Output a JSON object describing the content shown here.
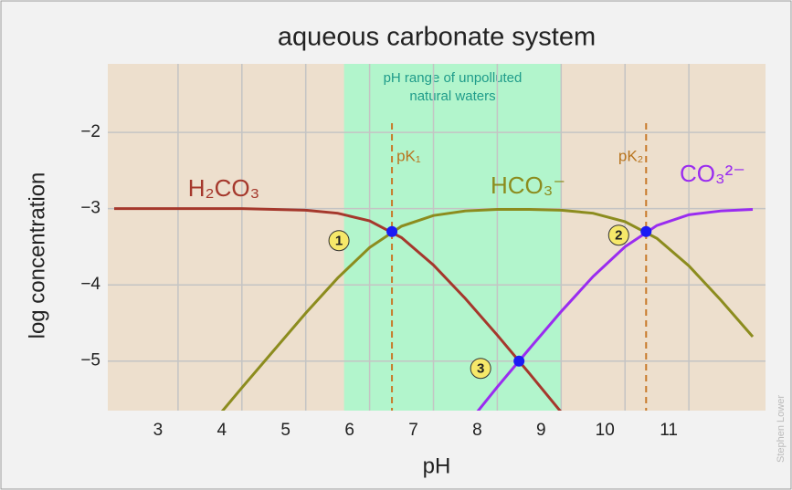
{
  "chart_data": {
    "type": "line",
    "title": "aqueous carbonate system",
    "x_label": "pH",
    "y_label": "log concentration",
    "credit": "Stephen Lower",
    "xlim": [
      1.9,
      12.2
    ],
    "ylim": [
      -5.65,
      -1.1
    ],
    "xticks": [
      3,
      4,
      5,
      6,
      7,
      8,
      9,
      10,
      11
    ],
    "yticks": [
      {
        "value": -2,
        "label": "−2"
      },
      {
        "value": -3,
        "label": "−3"
      },
      {
        "value": -4,
        "label": "−4"
      },
      {
        "value": -5,
        "label": "−5"
      }
    ],
    "grid": true,
    "x": [
      2,
      2.5,
      3,
      3.5,
      4,
      4.5,
      5,
      5.5,
      6,
      6.5,
      7,
      7.5,
      8,
      8.5,
      9,
      9.5,
      10,
      10.5,
      11,
      11.5,
      12
    ],
    "series": [
      {
        "name": "H₂CO₃",
        "color": "#a5382c",
        "values": [
          -3.0,
          -3.0,
          -3.0,
          -3.0,
          -3.0,
          -3.01,
          -3.02,
          -3.06,
          -3.16,
          -3.38,
          -3.74,
          -4.18,
          -4.66,
          -5.16,
          -5.67,
          null,
          null,
          null,
          null,
          null,
          null
        ]
      },
      {
        "name": "HCO₃⁻",
        "color": "#8c8c1e",
        "values": [
          null,
          null,
          null,
          -5.85,
          -5.35,
          -4.86,
          -4.37,
          -3.91,
          -3.51,
          -3.23,
          -3.09,
          -3.03,
          -3.01,
          -3.01,
          -3.02,
          -3.06,
          -3.17,
          -3.39,
          -3.75,
          -4.2,
          -4.68
        ]
      },
      {
        "name": "CO₃²⁻",
        "color": "#9a2cf0",
        "values": [
          null,
          null,
          null,
          null,
          null,
          null,
          null,
          null,
          null,
          null,
          null,
          -5.86,
          -5.34,
          -4.84,
          -4.35,
          -3.89,
          -3.5,
          -3.22,
          -3.08,
          -3.03,
          -3.01
        ]
      }
    ],
    "shaded_range": {
      "x": [
        5.6,
        9.0
      ],
      "color": "#b2f5cc",
      "label": [
        "pH range of unpolluted",
        "natural waters"
      ]
    },
    "pk_lines": [
      {
        "x": 6.35,
        "label": "pK₁"
      },
      {
        "x": 10.33,
        "label": "pK₂"
      }
    ],
    "points": [
      {
        "label": "1",
        "x": 6.35,
        "y": -3.3
      },
      {
        "label": "2",
        "x": 10.33,
        "y": -3.3
      },
      {
        "label": "3",
        "x": 8.34,
        "y": -5.0
      }
    ]
  }
}
